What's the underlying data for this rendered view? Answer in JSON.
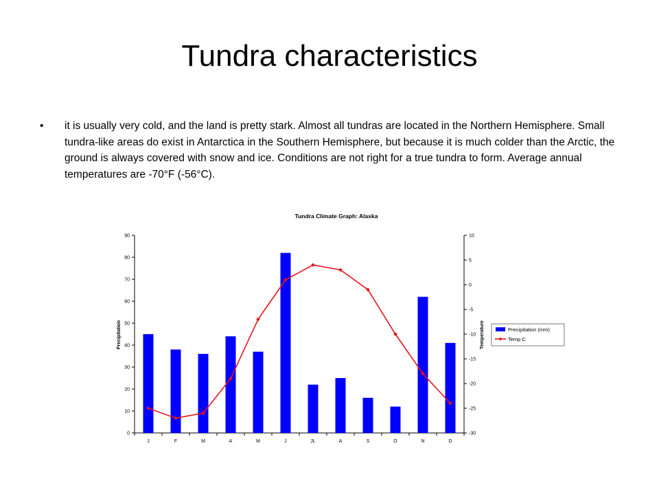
{
  "slide": {
    "title": "Tundra characteristics",
    "bullet_symbol": "•",
    "bullet": "it is usually very cold, and the land is pretty stark. Almost all tundras are located in the Northern Hemisphere. Small tundra-like areas do exist in Antarctica in the Southern Hemisphere, but because it is much colder than the Arctic, the ground is always covered with snow and ice. Conditions are not right for a true tundra to form. Average annual temperatures are -70°F (-56°C)."
  },
  "chart_data": {
    "type": "bar",
    "title": "Tundra Climate Graph: Alaska",
    "categories": [
      "J",
      "F",
      "M",
      "A",
      "M",
      "J",
      "JL",
      "A",
      "S",
      "O",
      "N",
      "D"
    ],
    "ylabel": "Precipitation",
    "ylim": [
      0,
      90
    ],
    "yticks": [
      0,
      10,
      20,
      30,
      40,
      50,
      60,
      70,
      80,
      90
    ],
    "y2label": "Temperature",
    "y2lim": [
      -30,
      10
    ],
    "y2ticks": [
      -30,
      -25,
      -20,
      -15,
      -10,
      -5,
      0,
      5,
      10
    ],
    "legend_position": "right",
    "series": [
      {
        "name": "Precipitation (mm)",
        "type": "bar",
        "axis": "left",
        "color": "#0000ff",
        "values": [
          45,
          38,
          36,
          44,
          37,
          82,
          22,
          25,
          16,
          12,
          62,
          41
        ]
      },
      {
        "name": "Temp C",
        "type": "line",
        "axis": "right",
        "color": "#e8121b",
        "values": [
          -25,
          -27,
          -26,
          -19,
          -7,
          1,
          4,
          3,
          -1,
          -10,
          -18,
          -24
        ]
      }
    ]
  }
}
